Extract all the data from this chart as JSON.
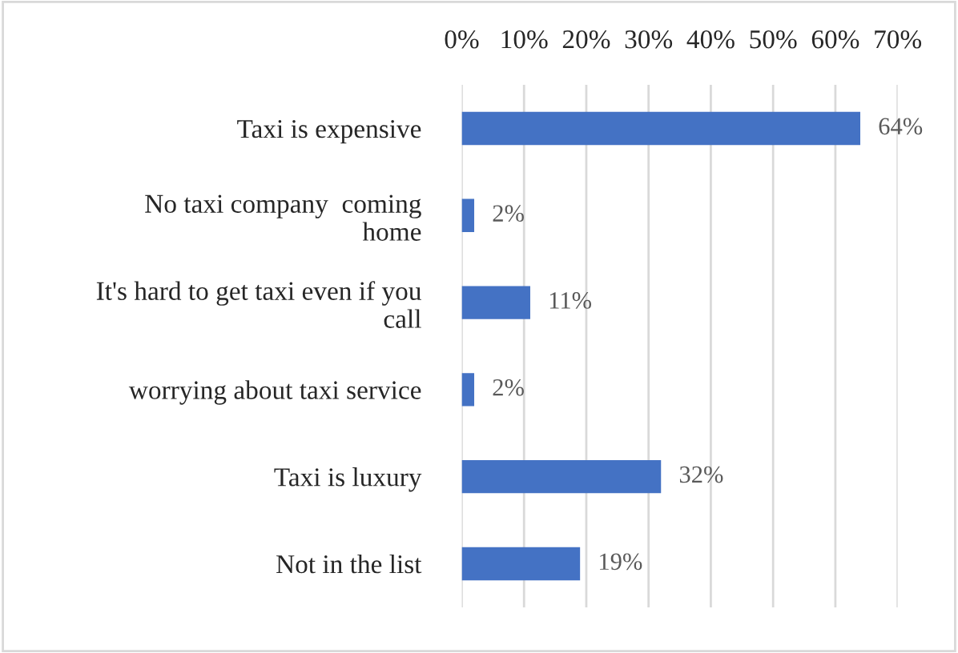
{
  "chart_data": {
    "type": "bar",
    "orientation": "horizontal",
    "categories": [
      "Taxi is expensive",
      "No taxi company  coming\nhome",
      "It's hard to get taxi even if you\ncall",
      "worrying about taxi service",
      "Taxi is luxury",
      "Not in the list"
    ],
    "values": [
      64,
      2,
      11,
      2,
      32,
      19
    ],
    "value_labels": [
      "64%",
      "2%",
      "11%",
      "2%",
      "32%",
      "19%"
    ],
    "color": "#4472c4",
    "xlim": [
      0,
      70
    ],
    "xticks": [
      {
        "value": 0,
        "label": "0%"
      },
      {
        "value": 10,
        "label": "10%"
      },
      {
        "value": 20,
        "label": "20%"
      },
      {
        "value": 30,
        "label": "30%"
      },
      {
        "value": 40,
        "label": "40%"
      },
      {
        "value": 50,
        "label": "50%"
      },
      {
        "value": 60,
        "label": "60%"
      },
      {
        "value": 70,
        "label": "70%"
      }
    ],
    "grid": "x"
  }
}
